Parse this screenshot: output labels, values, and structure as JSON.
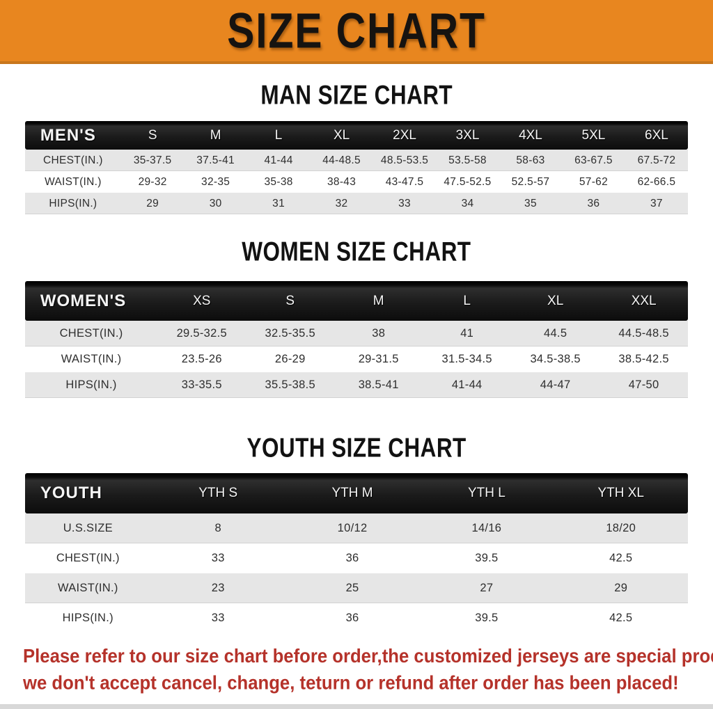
{
  "banner": {
    "title": "SIZE CHART",
    "background_color": "#E8861F",
    "text_color": "#161310"
  },
  "sections": [
    {
      "id": "men",
      "heading": "MAN SIZE CHART",
      "table": {
        "header": [
          "MEN'S",
          "S",
          "M",
          "L",
          "XL",
          "2XL",
          "3XL",
          "4XL",
          "5XL",
          "6XL"
        ],
        "rows": [
          [
            "CHEST(IN.)",
            "35-37.5",
            "37.5-41",
            "41-44",
            "44-48.5",
            "48.5-53.5",
            "53.5-58",
            "58-63",
            "63-67.5",
            "67.5-72"
          ],
          [
            "WAIST(IN.)",
            "29-32",
            "32-35",
            "35-38",
            "38-43",
            "43-47.5",
            "47.5-52.5",
            "52.5-57",
            "57-62",
            "62-66.5"
          ],
          [
            "HIPS(IN.)",
            "29",
            "30",
            "31",
            "32",
            "33",
            "34",
            "35",
            "36",
            "37"
          ]
        ]
      }
    },
    {
      "id": "women",
      "heading": "WOMEN SIZE CHART",
      "table": {
        "header": [
          "WOMEN'S",
          "XS",
          "S",
          "M",
          "L",
          "XL",
          "XXL"
        ],
        "rows": [
          [
            "CHEST(IN.)",
            "29.5-32.5",
            "32.5-35.5",
            "38",
            "41",
            "44.5",
            "44.5-48.5"
          ],
          [
            "WAIST(IN.)",
            "23.5-26",
            "26-29",
            "29-31.5",
            "31.5-34.5",
            "34.5-38.5",
            "38.5-42.5"
          ],
          [
            "HIPS(IN.)",
            "33-35.5",
            "35.5-38.5",
            "38.5-41",
            "41-44",
            "44-47",
            "47-50"
          ]
        ]
      }
    },
    {
      "id": "youth",
      "heading": "YOUTH SIZE CHART",
      "table": {
        "header": [
          "YOUTH",
          "YTH S",
          "YTH M",
          "YTH L",
          "YTH XL"
        ],
        "rows": [
          [
            "U.S.SIZE",
            "8",
            "10/12",
            "14/16",
            "18/20"
          ],
          [
            "CHEST(IN.)",
            "33",
            "36",
            "39.5",
            "42.5"
          ],
          [
            "WAIST(IN.)",
            "23",
            "25",
            "27",
            "29"
          ],
          [
            "HIPS(IN.)",
            "33",
            "36",
            "39.5",
            "42.5"
          ]
        ]
      }
    }
  ],
  "footer": {
    "lines": [
      "Please refer to our size chart before order,the customized jerseys are special products,",
      "we don't accept cancel, change, teturn or refund after order has been placed!"
    ],
    "text_color": "#B5322A"
  },
  "colors": {
    "table_header_bar": "#1B1B1B",
    "row_stripe_gray": "#E6E6E6",
    "row_white": "#FFFFFF"
  }
}
